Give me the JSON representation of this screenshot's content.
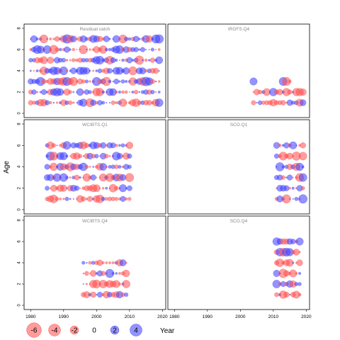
{
  "chart_data": {
    "type": "scatter",
    "subtype": "bubble-residuals",
    "ylabel": "Age",
    "legend_xlabel": "Year",
    "xlim": [
      1978,
      2021
    ],
    "ylim": [
      -0.4,
      8.4
    ],
    "x_ticks": [
      1980,
      1990,
      2000,
      2010,
      2020
    ],
    "y_ticks": [
      0,
      2,
      4,
      6,
      8
    ],
    "colors": {
      "positive": "#3a3aff",
      "negative": "#ff4a4a",
      "panel_border": "#000000",
      "panel_title": "#888888"
    },
    "legend": {
      "values": [
        -6,
        -4,
        -2,
        0,
        2,
        4
      ],
      "labels": [
        "-6",
        "-4",
        "-2",
        "0",
        "2",
        "4"
      ],
      "placement": "bottom"
    },
    "panels": [
      {
        "title": "Residual catch",
        "ages": [
          1,
          2,
          3,
          4,
          5,
          6,
          7
        ],
        "years": [
          1980,
          2019
        ],
        "seed": 11
      },
      {
        "title": "IRGFS.Q4",
        "ages": [
          1,
          2,
          3
        ],
        "years": [
          2004,
          2019
        ],
        "seed": 23,
        "skip": {
          "3": [
            2005,
            2006,
            2007,
            2008,
            2009,
            2010,
            2011,
            2012,
            2016,
            2017,
            2018,
            2019
          ]
        }
      },
      {
        "title": "WCIBTS.Q1",
        "ages": [
          1,
          2,
          3,
          4,
          5,
          6
        ],
        "years": [
          1985,
          2010
        ],
        "seed": 37
      },
      {
        "title": "SCO.Q1",
        "ages": [
          1,
          2,
          3,
          4,
          5,
          6
        ],
        "years": [
          2011,
          2019
        ],
        "seed": 41
      },
      {
        "title": "WCIBTS.Q4",
        "ages": [
          1,
          2,
          3,
          4
        ],
        "years": [
          1996,
          2009
        ],
        "seed": 53
      },
      {
        "title": "SCO.Q4",
        "ages": [
          1,
          2,
          3,
          4,
          5,
          6
        ],
        "years": [
          2011,
          2018
        ],
        "seed": 67
      }
    ]
  }
}
